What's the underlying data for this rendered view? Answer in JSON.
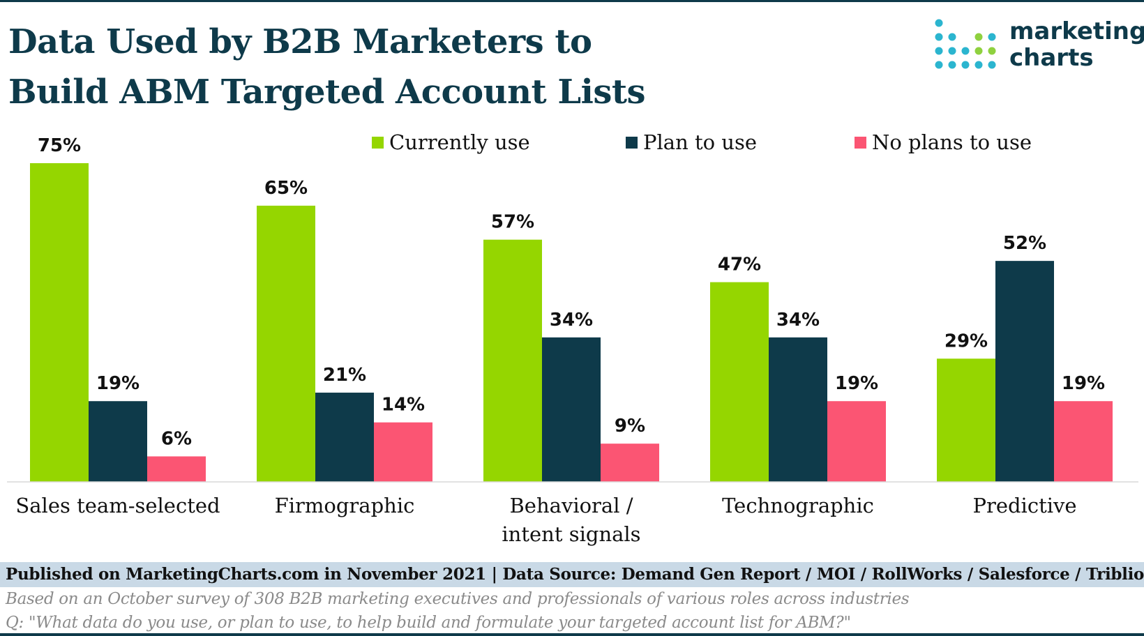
{
  "title_lines": [
    "Data Used by B2B Marketers to",
    "Build ABM Targeted Account Lists"
  ],
  "logo": {
    "line1": "marketing",
    "line2": "charts"
  },
  "colors": {
    "currently": "#95d600",
    "plan": "#0e3a4a",
    "noplans": "#fb5573",
    "brand": "#0e3a4a"
  },
  "chart_data": {
    "type": "bar",
    "categories": [
      "Sales team-selected",
      "Firmographic",
      "Behavioral / intent signals",
      "Technographic",
      "Predictive"
    ],
    "category_lines": [
      [
        "Sales team-selected"
      ],
      [
        "Firmographic"
      ],
      [
        "Behavioral /",
        "intent signals"
      ],
      [
        "Technographic"
      ],
      [
        "Predictive"
      ]
    ],
    "series": [
      {
        "name": "Currently use",
        "values": [
          75,
          65,
          57,
          47,
          29
        ],
        "color": "#95d600"
      },
      {
        "name": "Plan to use",
        "values": [
          19,
          21,
          34,
          34,
          52
        ],
        "color": "#0e3a4a"
      },
      {
        "name": "No plans to use",
        "values": [
          6,
          14,
          9,
          19,
          19
        ],
        "color": "#fb5573"
      }
    ],
    "value_suffix": "%",
    "ylim": [
      0,
      75
    ],
    "legend_position": "top",
    "grid": false,
    "title": "Data Used by B2B Marketers to Build ABM Targeted Account Lists",
    "xlabel": "",
    "ylabel": ""
  },
  "footer": {
    "published": "Published on MarketingCharts.com in November 2021 | Data Source: Demand Gen Report / MOI / RollWorks / Salesforce / Triblio",
    "note1": "Based on an October survey of 308 B2B marketing executives and professionals of various roles across industries",
    "note2": "Q: \"What data do you use, or plan to use, to help build and formulate your targeted account list for ABM?\""
  }
}
